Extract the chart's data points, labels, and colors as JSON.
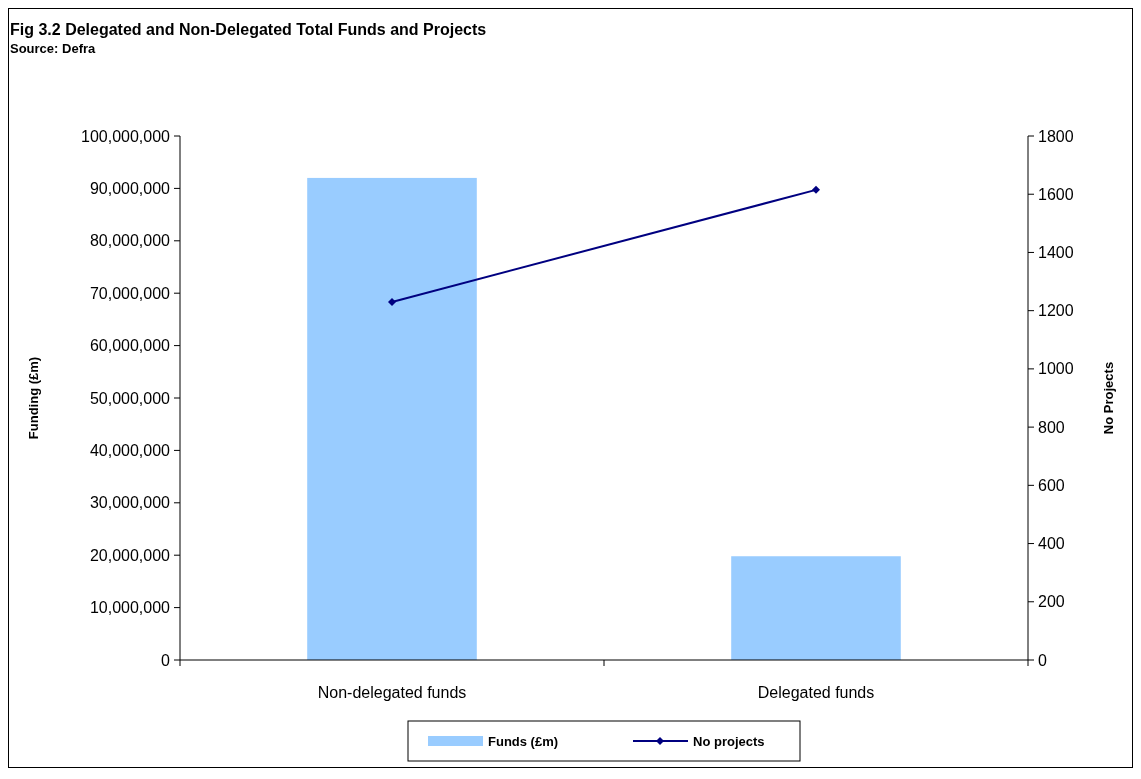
{
  "chart_data": {
    "type": "bar",
    "title": "Fig 3.2 Delegated and Non-Delegated Total Funds and Projects",
    "subtitle": "Source: Defra",
    "ylabel": "Funding (£m)",
    "y2label": "No Projects",
    "categories": [
      "Non-delegated funds",
      "Delegated funds"
    ],
    "series": [
      {
        "name": "Funds (£m)",
        "color": "#99ccff",
        "values": [
          92000000,
          19800000
        ]
      },
      {
        "name": "No projects",
        "type": "line",
        "axis": "y2",
        "color": "#000080",
        "values": [
          1230,
          1615
        ],
        "marker": "diamond"
      }
    ],
    "ylim": [
      0,
      100000000
    ],
    "yticks": [
      {
        "value": 0,
        "label": "0"
      },
      {
        "value": 10000000,
        "label": "10,000,000"
      },
      {
        "value": 20000000,
        "label": "20,000,000"
      },
      {
        "value": 30000000,
        "label": "30,000,000"
      },
      {
        "value": 40000000,
        "label": "40,000,000"
      },
      {
        "value": 50000000,
        "label": "50,000,000"
      },
      {
        "value": 60000000,
        "label": "60,000,000"
      },
      {
        "value": 70000000,
        "label": "70,000,000"
      },
      {
        "value": 80000000,
        "label": "80,000,000"
      },
      {
        "value": 90000000,
        "label": "90,000,000"
      },
      {
        "value": 100000000,
        "label": "100,000,000"
      }
    ],
    "y2lim": [
      0,
      1800
    ],
    "y2ticks": [
      0,
      200,
      400,
      600,
      800,
      1000,
      1200,
      1400,
      1600,
      1800
    ],
    "legend": "bottom",
    "grid": false
  }
}
